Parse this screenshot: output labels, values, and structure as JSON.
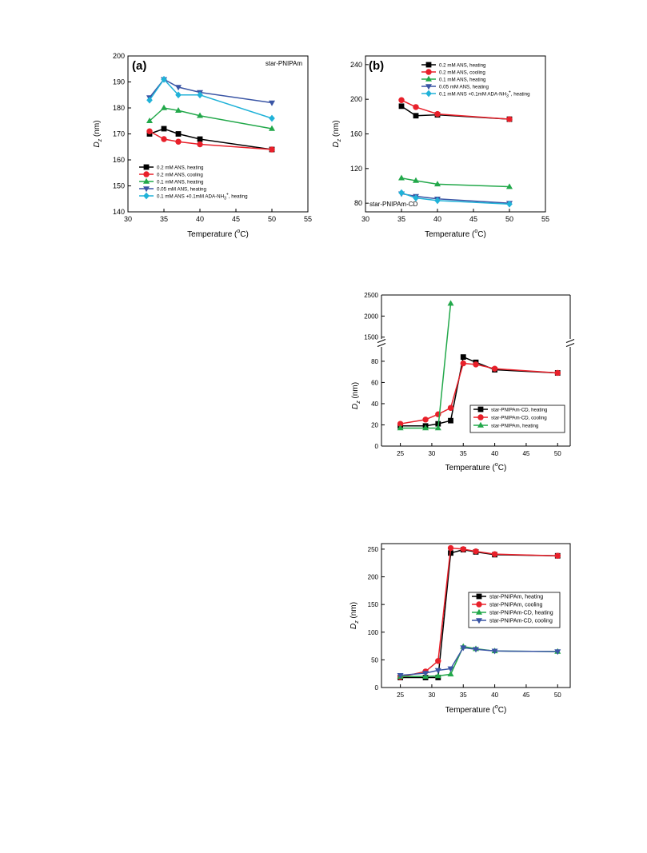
{
  "colors": {
    "black": "#000000",
    "red": "#e8202a",
    "green": "#22a84a",
    "navy": "#3a55a5",
    "cyan": "#20b2d8"
  },
  "chart_data": [
    {
      "id": "a",
      "type": "line",
      "panel_label": "(a)",
      "annotation": "star-PNIPAm",
      "xlabel": "Temperature (°C)",
      "ylabel": "D_z (nm)",
      "xlim": [
        30,
        55
      ],
      "ylim": [
        140,
        200
      ],
      "xticks": [
        30,
        35,
        40,
        45,
        50,
        55
      ],
      "yticks": [
        140,
        150,
        160,
        170,
        180,
        190,
        200
      ],
      "legend_position": "bottom-left",
      "series": [
        {
          "name": "0.2 mM ANS, heating",
          "color": "#000000",
          "marker": "square",
          "x": [
            33,
            35,
            37,
            40,
            50
          ],
          "y": [
            170,
            172,
            170,
            168,
            164
          ]
        },
        {
          "name": "0.2 mM ANS, cooling",
          "color": "#e8202a",
          "marker": "circle",
          "x": [
            33,
            35,
            37,
            40,
            50
          ],
          "y": [
            171,
            168,
            167,
            166,
            164
          ]
        },
        {
          "name": "0.1 mM ANS, heating",
          "color": "#22a84a",
          "marker": "triangle-up",
          "x": [
            33,
            35,
            37,
            40,
            50
          ],
          "y": [
            175,
            180,
            179,
            177,
            172
          ]
        },
        {
          "name": "0.05 mM ANS, heating",
          "color": "#3a55a5",
          "marker": "triangle-down",
          "x": [
            33,
            35,
            37,
            40,
            50
          ],
          "y": [
            184,
            191,
            188,
            186,
            182
          ]
        },
        {
          "name": "0.1 mM ANS +0.1mM ADA-NH3+, heating",
          "color": "#20b2d8",
          "marker": "diamond",
          "x": [
            33,
            35,
            37,
            40,
            50
          ],
          "y": [
            183,
            191,
            185,
            185,
            176
          ]
        }
      ]
    },
    {
      "id": "b",
      "type": "line",
      "panel_label": "(b)",
      "annotation": "star-PNIPAm-CD",
      "xlabel": "Temperature (°C)",
      "ylabel": "D_z (nm)",
      "xlim": [
        30,
        55
      ],
      "ylim": [
        70,
        250
      ],
      "xticks": [
        30,
        35,
        40,
        45,
        50,
        55
      ],
      "yticks": [
        80,
        120,
        160,
        200,
        240
      ],
      "legend_position": "top-left",
      "series": [
        {
          "name": "0.2 mM ANS, heating",
          "color": "#000000",
          "marker": "square",
          "x": [
            35,
            37,
            40,
            50
          ],
          "y": [
            192,
            181,
            182,
            177
          ]
        },
        {
          "name": "0.2 mM ANS, cooling",
          "color": "#e8202a",
          "marker": "circle",
          "x": [
            35,
            37,
            40,
            50
          ],
          "y": [
            199,
            191,
            183,
            177
          ]
        },
        {
          "name": "0.1 mM ANS, heating",
          "color": "#22a84a",
          "marker": "triangle-up",
          "x": [
            35,
            37,
            40,
            50
          ],
          "y": [
            109,
            106,
            102,
            99
          ]
        },
        {
          "name": "0.05 mM ANS, heating",
          "color": "#3a55a5",
          "marker": "triangle-down",
          "x": [
            35,
            37,
            40,
            50
          ],
          "y": [
            91,
            88,
            85,
            80
          ]
        },
        {
          "name": "0.1 mM ANS +0.1mM ADA-NH3+, heating",
          "color": "#20b2d8",
          "marker": "diamond",
          "x": [
            35,
            37,
            40,
            50
          ],
          "y": [
            92,
            86,
            83,
            79
          ]
        }
      ]
    },
    {
      "id": "c",
      "type": "line",
      "xlabel": "Temperature (°C)",
      "ylabel": "D_z (nm)",
      "xlim": [
        22,
        52
      ],
      "ylim_lower": [
        0,
        95
      ],
      "ylim_upper": [
        1500,
        2500
      ],
      "axis_break": true,
      "xticks": [
        25,
        30,
        35,
        40,
        45,
        50
      ],
      "yticks_lower": [
        0,
        20,
        40,
        60,
        80
      ],
      "yticks_upper": [
        1500,
        2000,
        2500
      ],
      "legend_position": "bottom-right",
      "series": [
        {
          "name": "star-PNIPAm-CD, heating",
          "color": "#000000",
          "marker": "square",
          "x": [
            25,
            29,
            31,
            33,
            35,
            37,
            40,
            50
          ],
          "y": [
            19,
            19,
            21,
            24,
            84,
            79,
            72,
            69
          ]
        },
        {
          "name": "star-PNIPAm-CD, cooling",
          "color": "#e8202a",
          "marker": "circle",
          "x": [
            25,
            29,
            31,
            33,
            35,
            37,
            40,
            50
          ],
          "y": [
            21,
            25,
            30,
            36,
            78,
            77,
            73,
            69
          ]
        },
        {
          "name": "star-PNIPAm, heating",
          "color": "#22a84a",
          "marker": "triangle-up",
          "x": [
            25,
            29,
            31,
            33
          ],
          "y": [
            17,
            17,
            17,
            2300
          ]
        }
      ]
    },
    {
      "id": "d",
      "type": "line",
      "xlabel": "Temperature (°C)",
      "ylabel": "D_z (nm)",
      "xlim": [
        22,
        52
      ],
      "ylim": [
        0,
        260
      ],
      "xticks": [
        25,
        30,
        35,
        40,
        45,
        50
      ],
      "yticks": [
        0,
        50,
        100,
        150,
        200,
        250
      ],
      "legend_position": "center-right",
      "series": [
        {
          "name": "star-PNIPAm, heating",
          "color": "#000000",
          "marker": "square",
          "x": [
            25,
            29,
            31,
            33,
            35,
            37,
            40,
            50
          ],
          "y": [
            18,
            18,
            18,
            243,
            249,
            245,
            240,
            238
          ]
        },
        {
          "name": "star-PNIPAm, cooling",
          "color": "#e8202a",
          "marker": "circle",
          "x": [
            25,
            29,
            31,
            33,
            35,
            37,
            40,
            50
          ],
          "y": [
            19,
            29,
            48,
            252,
            250,
            246,
            241,
            238
          ]
        },
        {
          "name": "star-PNIPAm-CD, heating",
          "color": "#22a84a",
          "marker": "triangle-up",
          "x": [
            25,
            29,
            31,
            33,
            35,
            37,
            40,
            50
          ],
          "y": [
            20,
            20,
            21,
            24,
            74,
            70,
            66,
            65
          ]
        },
        {
          "name": "star-PNIPAm-CD, cooling",
          "color": "#3a55a5",
          "marker": "triangle-down",
          "x": [
            25,
            29,
            31,
            33,
            35,
            37,
            40,
            50
          ],
          "y": [
            22,
            26,
            31,
            34,
            72,
            69,
            66,
            65
          ]
        }
      ]
    }
  ]
}
